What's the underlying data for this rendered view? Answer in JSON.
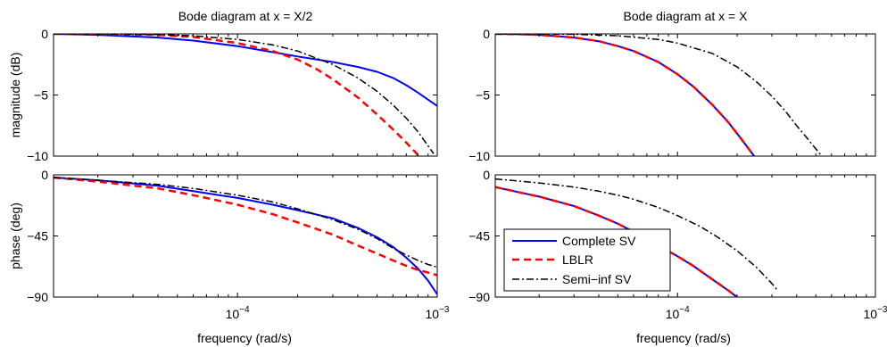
{
  "figure": {
    "xlabel": "frequency (rad/s)",
    "legend": [
      "Complete SV",
      "LBLR",
      "Semi−inf SV"
    ]
  },
  "colors": {
    "complete_sv": "#0000ff",
    "lblr": "#ff0000",
    "semi_inf_sv": "#000000"
  },
  "chart_data": [
    {
      "type": "line",
      "title": "Bode diagram at x = X/2",
      "xlabel": "",
      "ylabel": "magnitude (dB)",
      "xscale": "log",
      "xlim": [
        1.2e-05,
        0.001
      ],
      "ylim": [
        -10,
        0
      ],
      "yticks": [
        0,
        -5,
        -10
      ],
      "ytick_labels": [
        "0",
        "−5",
        "−10"
      ],
      "grid": false,
      "series": [
        {
          "name": "Complete SV",
          "x": [
            1.2e-05,
            2e-05,
            4e-05,
            6e-05,
            0.0001,
            0.00015,
            0.0002,
            0.0003,
            0.0004,
            0.0005,
            0.0006,
            0.0007,
            0.0008,
            0.001
          ],
          "y": [
            0,
            -0.08,
            -0.3,
            -0.55,
            -1.0,
            -1.5,
            -1.85,
            -2.3,
            -2.7,
            -3.1,
            -3.6,
            -4.2,
            -4.8,
            -5.9
          ]
        },
        {
          "name": "LBLR",
          "x": [
            1.2e-05,
            2e-05,
            4e-05,
            6e-05,
            0.0001,
            0.00015,
            0.0002,
            0.00025,
            0.0003,
            0.0004,
            0.0005,
            0.0006,
            0.0007,
            0.0008
          ],
          "y": [
            0,
            0,
            -0.08,
            -0.25,
            -0.75,
            -1.4,
            -2.1,
            -2.9,
            -3.7,
            -5.2,
            -6.6,
            -7.8,
            -8.9,
            -9.9
          ]
        },
        {
          "name": "Semi−inf SV",
          "x": [
            1.2e-05,
            2e-05,
            4e-05,
            6e-05,
            0.0001,
            0.00015,
            0.0002,
            0.0003,
            0.0004,
            0.0005,
            0.0006,
            0.0007,
            0.0008,
            0.00096
          ],
          "y": [
            0,
            0,
            -0.05,
            -0.15,
            -0.45,
            -0.9,
            -1.4,
            -2.5,
            -3.6,
            -4.7,
            -5.8,
            -6.9,
            -8.0,
            -9.8
          ]
        }
      ]
    },
    {
      "type": "line",
      "title": "Bode diagram at x = X",
      "xlabel": "",
      "ylabel": "",
      "xscale": "log",
      "xlim": [
        1.2e-05,
        0.001
      ],
      "ylim": [
        -10,
        0
      ],
      "yticks": [
        0,
        -5,
        -10
      ],
      "ytick_labels": [
        "0",
        "−5",
        "−10"
      ],
      "grid": false,
      "series": [
        {
          "name": "Complete SV",
          "x": [
            1.2e-05,
            1.6e-05,
            2e-05,
            3e-05,
            4e-05,
            5e-05,
            6e-05,
            8e-05,
            0.0001,
            0.00012,
            0.00015,
            0.00018,
            0.00021,
            0.000244
          ],
          "y": [
            0,
            -0.03,
            -0.08,
            -0.3,
            -0.6,
            -1.0,
            -1.4,
            -2.3,
            -3.3,
            -4.3,
            -5.8,
            -7.2,
            -8.6,
            -10.0
          ]
        },
        {
          "name": "LBLR",
          "x": [
            1.2e-05,
            1.6e-05,
            2e-05,
            3e-05,
            4e-05,
            5e-05,
            6e-05,
            8e-05,
            0.0001,
            0.00012,
            0.00015,
            0.00018,
            0.00021,
            0.000244
          ],
          "y": [
            0,
            -0.03,
            -0.08,
            -0.3,
            -0.6,
            -1.0,
            -1.4,
            -2.3,
            -3.3,
            -4.3,
            -5.8,
            -7.2,
            -8.6,
            -10.0
          ]
        },
        {
          "name": "Semi−inf SV",
          "x": [
            1.2e-05,
            2e-05,
            3e-05,
            5e-05,
            8e-05,
            0.0001,
            0.00015,
            0.0002,
            0.00025,
            0.0003,
            0.00035,
            0.0004,
            0.00045,
            0.000536
          ],
          "y": [
            0,
            0,
            -0.03,
            -0.15,
            -0.45,
            -0.75,
            -1.6,
            -2.7,
            -3.9,
            -5.1,
            -6.3,
            -7.5,
            -8.5,
            -10.0
          ]
        }
      ]
    },
    {
      "type": "line",
      "title": "",
      "xlabel": "frequency (rad/s)",
      "ylabel": "phase (deg)",
      "xscale": "log",
      "xlim": [
        1.2e-05,
        0.001
      ],
      "ylim": [
        -90,
        0
      ],
      "yticks": [
        0,
        -45,
        -90
      ],
      "ytick_labels": [
        "0",
        "−45",
        "−90"
      ],
      "xticks": [
        0.0001,
        0.001
      ],
      "xtick_labels": [
        "10^-4",
        "10^-3"
      ],
      "grid": false,
      "series": [
        {
          "name": "Complete SV",
          "x": [
            1.2e-05,
            2e-05,
            4e-05,
            6e-05,
            0.0001,
            0.00015,
            0.0002,
            0.0003,
            0.0004,
            0.0005,
            0.0006,
            0.0007,
            0.0008,
            0.0009,
            0.001
          ],
          "y": [
            -2,
            -4,
            -8,
            -12,
            -17,
            -22,
            -26,
            -32,
            -39,
            -46,
            -53,
            -61,
            -69,
            -78,
            -88
          ]
        },
        {
          "name": "LBLR",
          "x": [
            1.2e-05,
            2e-05,
            4e-05,
            6e-05,
            0.0001,
            0.00015,
            0.0002,
            0.0003,
            0.0004,
            0.0005,
            0.0006,
            0.0007,
            0.0008,
            0.0009,
            0.001
          ],
          "y": [
            -2,
            -5,
            -10,
            -15,
            -22,
            -29,
            -35,
            -44,
            -52,
            -58,
            -63,
            -67,
            -70,
            -72,
            -74
          ]
        },
        {
          "name": "Semi−inf SV",
          "x": [
            1.2e-05,
            2e-05,
            4e-05,
            6e-05,
            0.0001,
            0.00015,
            0.0002,
            0.0003,
            0.0004,
            0.0005,
            0.0006,
            0.0007,
            0.0008,
            0.0009,
            0.001
          ],
          "y": [
            -2,
            -4,
            -7,
            -10,
            -15,
            -20,
            -25,
            -33,
            -40,
            -47,
            -54,
            -59,
            -63,
            -66,
            -68
          ]
        }
      ]
    },
    {
      "type": "line",
      "title": "",
      "xlabel": "frequency (rad/s)",
      "ylabel": "",
      "xscale": "log",
      "xlim": [
        1.2e-05,
        0.001
      ],
      "ylim": [
        -90,
        0
      ],
      "yticks": [
        0,
        -45,
        -90
      ],
      "ytick_labels": [
        "0",
        "−45",
        "−90"
      ],
      "xticks": [
        0.0001,
        0.001
      ],
      "xtick_labels": [
        "10^-4",
        "10^-3"
      ],
      "grid": false,
      "legend_position": "bottom-left",
      "series": [
        {
          "name": "Complete SV",
          "x": [
            1.2e-05,
            1.6e-05,
            2e-05,
            3e-05,
            4e-05,
            5e-05,
            6e-05,
            8e-05,
            0.0001,
            0.00012,
            0.00015,
            0.00018,
            0.0002
          ],
          "y": [
            -9,
            -13,
            -16,
            -23,
            -30,
            -36,
            -42,
            -52,
            -60,
            -67,
            -77,
            -85,
            -90
          ]
        },
        {
          "name": "LBLR",
          "x": [
            1.2e-05,
            1.6e-05,
            2e-05,
            3e-05,
            4e-05,
            5e-05,
            6e-05,
            8e-05,
            0.0001,
            0.00012,
            0.00015,
            0.00018,
            0.0002
          ],
          "y": [
            -9,
            -13,
            -16,
            -23,
            -30,
            -36,
            -42,
            -52,
            -60,
            -67,
            -77,
            -85,
            -90
          ]
        },
        {
          "name": "Semi−inf SV",
          "x": [
            1.2e-05,
            2e-05,
            3e-05,
            4e-05,
            5e-05,
            6e-05,
            8e-05,
            0.0001,
            0.00013,
            0.00016,
            0.0002,
            0.00025,
            0.0003,
            0.00032
          ],
          "y": [
            -3,
            -6,
            -9,
            -12,
            -15,
            -18,
            -24,
            -30,
            -38,
            -46,
            -56,
            -68,
            -80,
            -85
          ]
        }
      ]
    }
  ]
}
